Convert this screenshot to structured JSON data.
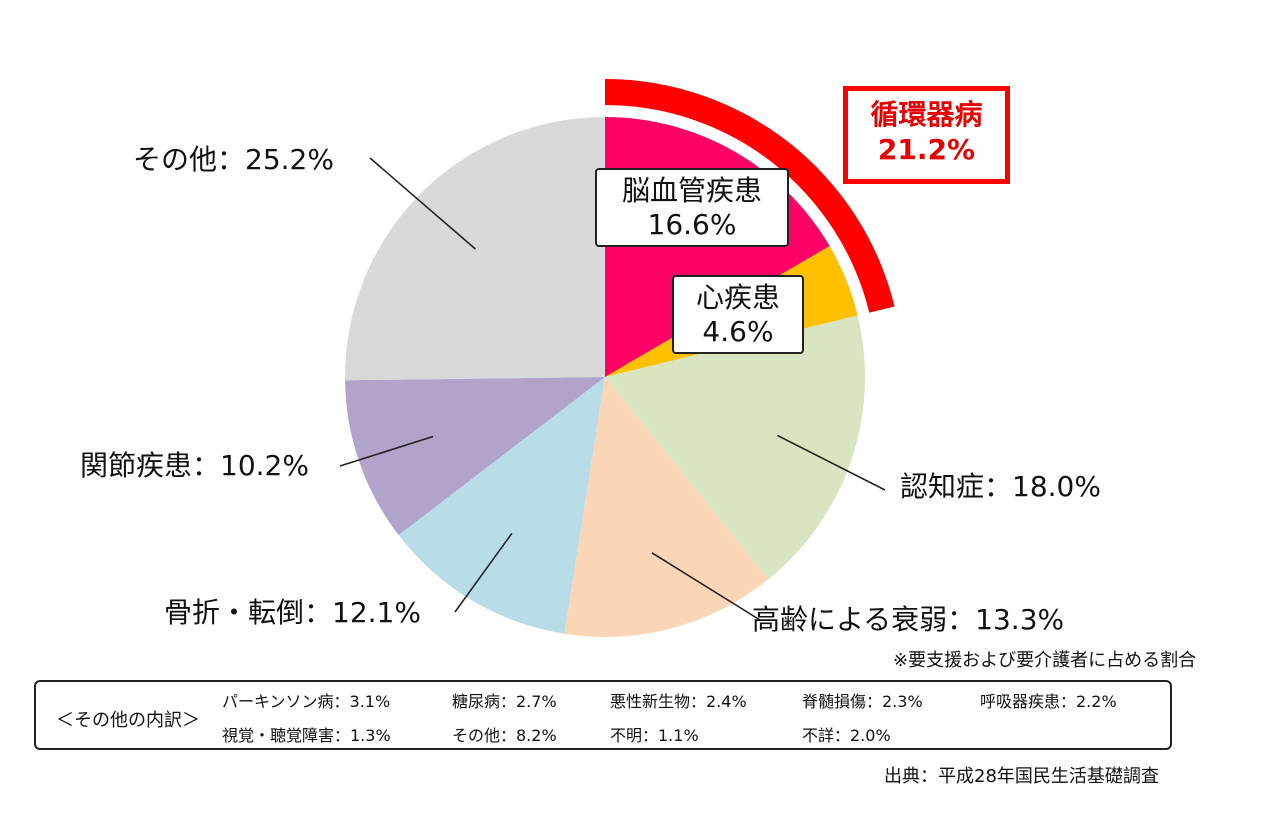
{
  "chart_data": {
    "type": "pie",
    "slices": [
      {
        "label": "脳血管疾患",
        "value": 16.6,
        "color": "#ff0066"
      },
      {
        "label": "心疾患",
        "value": 4.6,
        "color": "#ffc000"
      },
      {
        "label": "認知症",
        "value": 18.0,
        "color": "#d9e4c1"
      },
      {
        "label": "高齢による衰弱",
        "value": 13.3,
        "color": "#fbd6b6"
      },
      {
        "label": "骨折・転倒",
        "value": 12.1,
        "color": "#b8dde9"
      },
      {
        "label": "関節疾患",
        "value": 10.2,
        "color": "#b1a3c9"
      },
      {
        "label": "その他",
        "value": 25.2,
        "color": "#d9d9d9"
      }
    ],
    "slice_labels": {
      "cerebro": {
        "name": "脳血管疾患",
        "pct": "16.6%"
      },
      "heart": {
        "name": "心疾患",
        "pct": "4.6%"
      },
      "dementia": "認知症：18.0%",
      "frailty": "高齢による衰弱：13.3%",
      "fracture": "骨折・転倒：12.1%",
      "joint": "関節疾患：10.2%",
      "other": "その他：25.2%"
    },
    "group": {
      "name": "循環器病",
      "pct": "21.2%",
      "value": 21.2,
      "color": "#ff0000"
    },
    "note": "※要支援および要介護者に占める割合",
    "source": "出典：平成28年国民生活基礎調査"
  },
  "breakdown": {
    "title": "＜その他の内訳＞",
    "items": [
      "パーキンソン病：3.1%",
      "糖尿病：2.7%",
      "悪性新生物：2.4%",
      "脊髄損傷：2.3%",
      "呼吸器疾患：2.2%",
      "視覚・聴覚障害：1.3%",
      "その他：8.2%",
      "不明：1.1%",
      "不詳：2.0%"
    ]
  }
}
